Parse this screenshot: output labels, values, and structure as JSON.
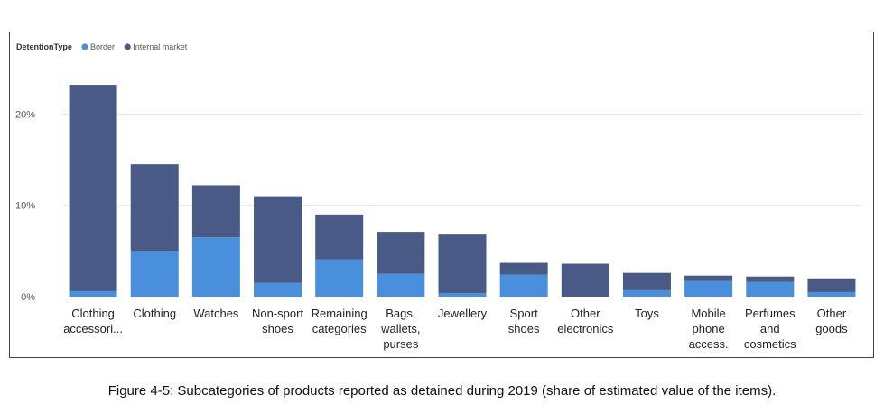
{
  "chart_data": {
    "type": "bar",
    "stacked": true,
    "legend_title": "DetentionType",
    "legend_position": "top-left",
    "series": [
      {
        "name": "Border",
        "color": "#4a8fdb",
        "values": [
          0.6,
          5.0,
          6.5,
          1.5,
          4.1,
          2.5,
          0.4,
          2.4,
          0.0,
          0.7,
          1.7,
          1.6,
          0.5
        ]
      },
      {
        "name": "Internal market",
        "color": "#4a5a87",
        "values": [
          22.6,
          9.5,
          5.7,
          9.5,
          4.9,
          4.6,
          6.4,
          1.3,
          3.6,
          1.9,
          0.6,
          0.6,
          1.5
        ]
      }
    ],
    "categories": [
      [
        "Clothing",
        "accessori..."
      ],
      [
        "Clothing"
      ],
      [
        "Watches"
      ],
      [
        "Non-sport",
        "shoes"
      ],
      [
        "Remaining",
        "categories"
      ],
      [
        "Bags,",
        "wallets,",
        "purses"
      ],
      [
        "Jewellery"
      ],
      [
        "Sport",
        "shoes"
      ],
      [
        "Other",
        "electronics"
      ],
      [
        "Toys"
      ],
      [
        "Mobile",
        "phone",
        "access."
      ],
      [
        "Perfumes",
        "and",
        "cosmetics"
      ],
      [
        "Other",
        "goods"
      ]
    ],
    "y_ticks": [
      {
        "value": 0,
        "label": "0%"
      },
      {
        "value": 10,
        "label": "10%"
      },
      {
        "value": 20,
        "label": "20%"
      }
    ],
    "ylim": [
      0,
      23.6
    ],
    "grid": true
  },
  "caption": "Figure 4-5: Subcategories of products reported as detained during 2019 (share of estimated value of the items)."
}
